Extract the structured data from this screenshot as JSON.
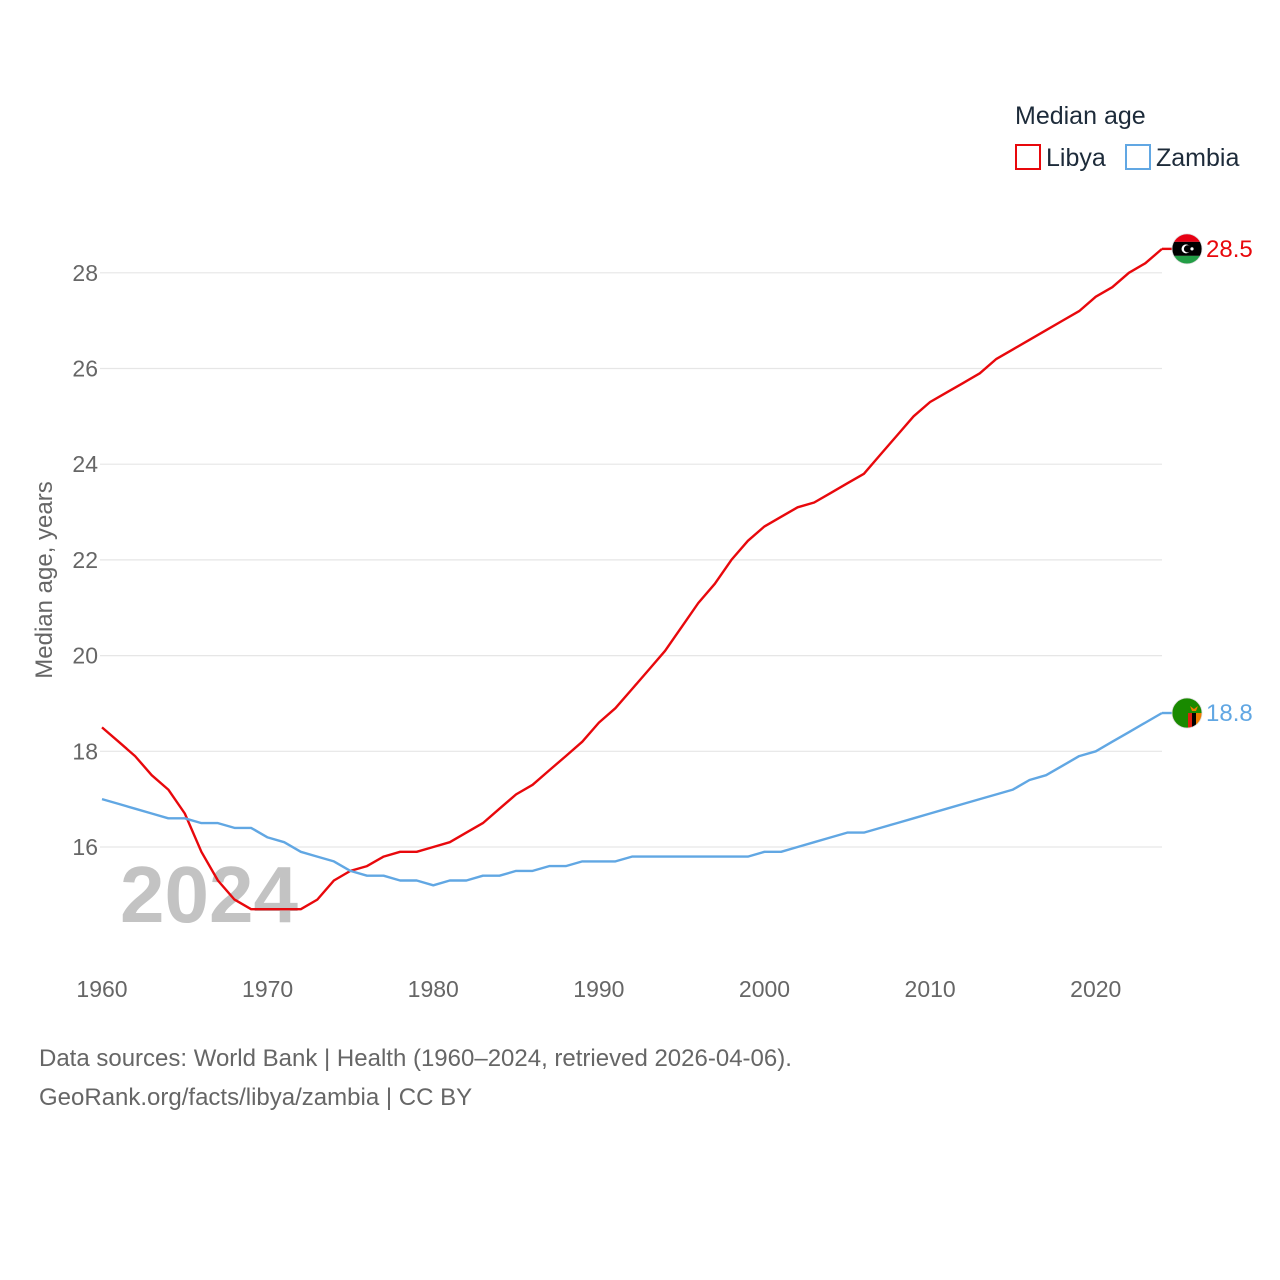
{
  "chart_data": {
    "type": "line",
    "title": "",
    "xlabel": "",
    "ylabel": "Median age, years",
    "xlim": [
      1960,
      2024
    ],
    "ylim": [
      14,
      29
    ],
    "yticks": [
      16,
      18,
      20,
      22,
      24,
      26,
      28
    ],
    "xticks": [
      1960,
      1970,
      1980,
      1990,
      2000,
      2010,
      2020
    ],
    "legend": {
      "title": "Median age",
      "position": "top-right"
    },
    "year_watermark": "2024",
    "x": [
      1960,
      1961,
      1962,
      1963,
      1964,
      1965,
      1966,
      1967,
      1968,
      1969,
      1970,
      1971,
      1972,
      1973,
      1974,
      1975,
      1976,
      1977,
      1978,
      1979,
      1980,
      1981,
      1982,
      1983,
      1984,
      1985,
      1986,
      1987,
      1988,
      1989,
      1990,
      1991,
      1992,
      1993,
      1994,
      1995,
      1996,
      1997,
      1998,
      1999,
      2000,
      2001,
      2002,
      2003,
      2004,
      2005,
      2006,
      2007,
      2008,
      2009,
      2010,
      2011,
      2012,
      2013,
      2014,
      2015,
      2016,
      2017,
      2018,
      2019,
      2020,
      2021,
      2022,
      2023,
      2024
    ],
    "series": [
      {
        "name": "Libya",
        "color": "#e8080c",
        "end_label": "28.5",
        "flag": "libya-flag",
        "values": [
          18.5,
          18.2,
          17.9,
          17.5,
          17.2,
          16.7,
          15.9,
          15.3,
          14.9,
          14.7,
          14.7,
          14.7,
          14.7,
          14.9,
          15.3,
          15.5,
          15.6,
          15.8,
          15.9,
          15.9,
          16.0,
          16.1,
          16.3,
          16.5,
          16.8,
          17.1,
          17.3,
          17.6,
          17.9,
          18.2,
          18.6,
          18.9,
          19.3,
          19.7,
          20.1,
          20.6,
          21.1,
          21.5,
          22.0,
          22.4,
          22.7,
          22.9,
          23.1,
          23.2,
          23.4,
          23.6,
          23.8,
          24.2,
          24.6,
          25.0,
          25.3,
          25.5,
          25.7,
          25.9,
          26.2,
          26.4,
          26.6,
          26.8,
          27.0,
          27.2,
          27.5,
          27.7,
          28.0,
          28.2,
          28.5
        ]
      },
      {
        "name": "Zambia",
        "color": "#61a7e3",
        "end_label": "18.8",
        "flag": "zambia-flag",
        "values": [
          17.0,
          16.9,
          16.8,
          16.7,
          16.6,
          16.6,
          16.5,
          16.5,
          16.4,
          16.4,
          16.2,
          16.1,
          15.9,
          15.8,
          15.7,
          15.5,
          15.4,
          15.4,
          15.3,
          15.3,
          15.2,
          15.3,
          15.3,
          15.4,
          15.4,
          15.5,
          15.5,
          15.6,
          15.6,
          15.7,
          15.7,
          15.7,
          15.8,
          15.8,
          15.8,
          15.8,
          15.8,
          15.8,
          15.8,
          15.8,
          15.9,
          15.9,
          16.0,
          16.1,
          16.2,
          16.3,
          16.3,
          16.4,
          16.5,
          16.6,
          16.7,
          16.8,
          16.9,
          17.0,
          17.1,
          17.2,
          17.4,
          17.5,
          17.7,
          17.9,
          18.0,
          18.2,
          18.4,
          18.6,
          18.8
        ]
      }
    ]
  },
  "footer": {
    "line1": "Data sources: World Bank | Health (1960–2024, retrieved 2026-04-06).",
    "line2": "GeoRank.org/facts/libya/zambia | CC BY"
  }
}
